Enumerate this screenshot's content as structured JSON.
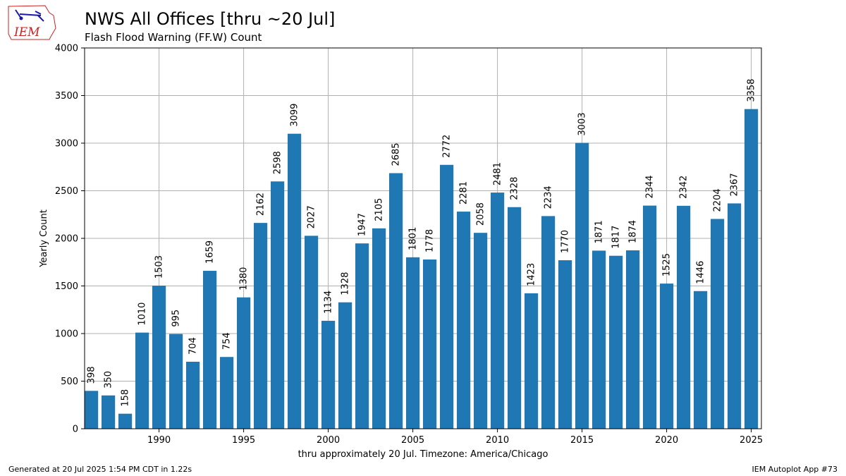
{
  "header": {
    "title": "NWS All Offices [thru ~20 Jul]",
    "subtitle": "Flash Flood Warning (FF.W) Count"
  },
  "logo": {
    "text": "IEM"
  },
  "footer": {
    "left": "Generated at 20 Jul 2025 1:54 PM CDT in 1.22s",
    "right": "IEM Autoplot App #73"
  },
  "colors": {
    "bar": "#1f77b4",
    "grid": "#b0b0b0",
    "logo": "#cc2222"
  },
  "chart_data": {
    "type": "bar",
    "title": "NWS All Offices [thru ~20 Jul]",
    "subtitle": "Flash Flood Warning (FF.W) Count",
    "xlabel": "thru approximately 20 Jul. Timezone: America/Chicago",
    "ylabel": "Yearly Count",
    "x": [
      1986,
      1987,
      1988,
      1989,
      1990,
      1991,
      1992,
      1993,
      1994,
      1995,
      1996,
      1997,
      1998,
      1999,
      2000,
      2001,
      2002,
      2003,
      2004,
      2005,
      2006,
      2007,
      2008,
      2009,
      2010,
      2011,
      2012,
      2013,
      2014,
      2015,
      2016,
      2017,
      2018,
      2019,
      2020,
      2021,
      2022,
      2023,
      2024,
      2025
    ],
    "values": [
      398,
      350,
      158,
      1010,
      1503,
      995,
      704,
      1659,
      754,
      1380,
      2162,
      2598,
      3099,
      2027,
      1134,
      1328,
      1947,
      2105,
      2685,
      1801,
      1778,
      2772,
      2281,
      2058,
      2481,
      2328,
      1423,
      2234,
      1770,
      3003,
      1871,
      1817,
      1874,
      2344,
      1525,
      2342,
      1446,
      2204,
      2367,
      3358
    ],
    "xlim": [
      1985.6,
      2025.6
    ],
    "ylim": [
      0,
      4000
    ],
    "xticks": [
      1990,
      1995,
      2000,
      2005,
      2010,
      2015,
      2020,
      2025
    ],
    "yticks": [
      0,
      500,
      1000,
      1500,
      2000,
      2500,
      3000,
      3500,
      4000
    ],
    "grid": true,
    "legend": "none"
  }
}
